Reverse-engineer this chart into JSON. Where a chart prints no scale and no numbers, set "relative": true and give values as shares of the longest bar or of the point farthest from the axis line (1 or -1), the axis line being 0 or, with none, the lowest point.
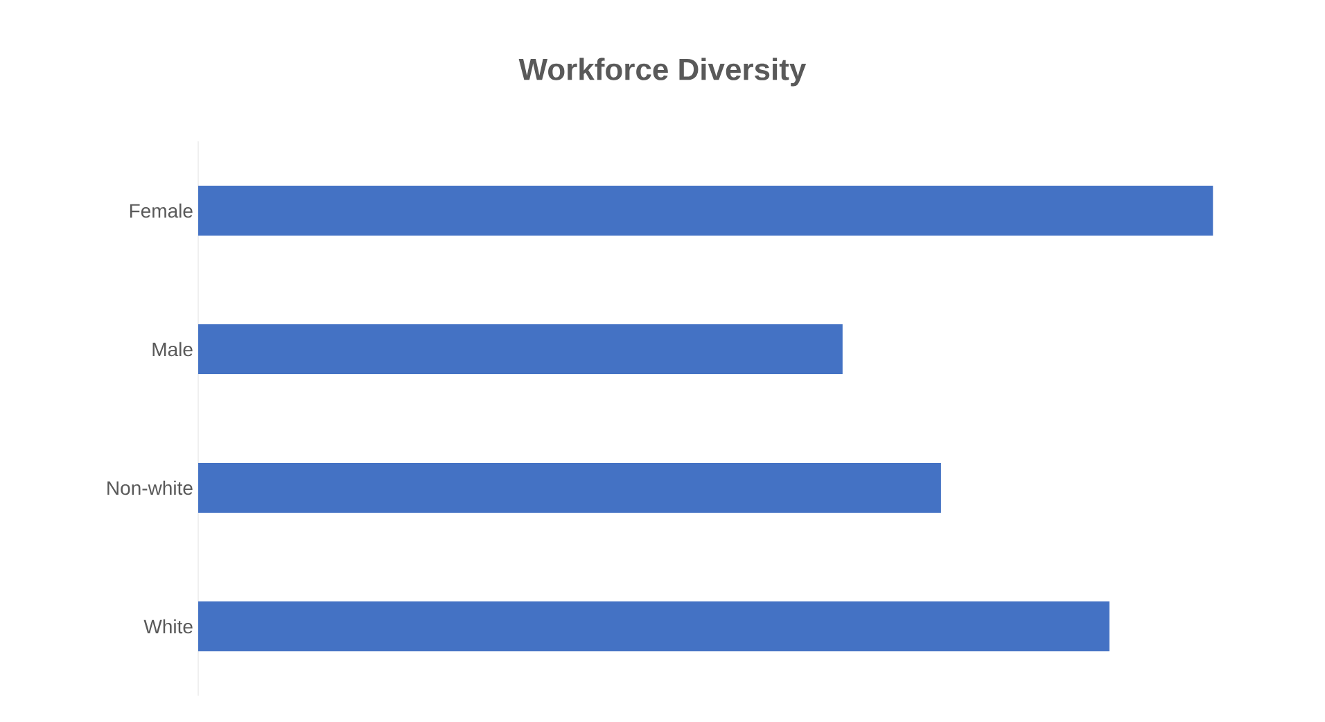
{
  "chart_data": {
    "type": "bar",
    "orientation": "horizontal",
    "relative": true,
    "title": "Workforce Diversity",
    "categories": [
      "Female",
      "Male",
      "Non-white",
      "White"
    ],
    "values": [
      1,
      0.635,
      0.732,
      0.898
    ],
    "color": "#4472c4"
  }
}
